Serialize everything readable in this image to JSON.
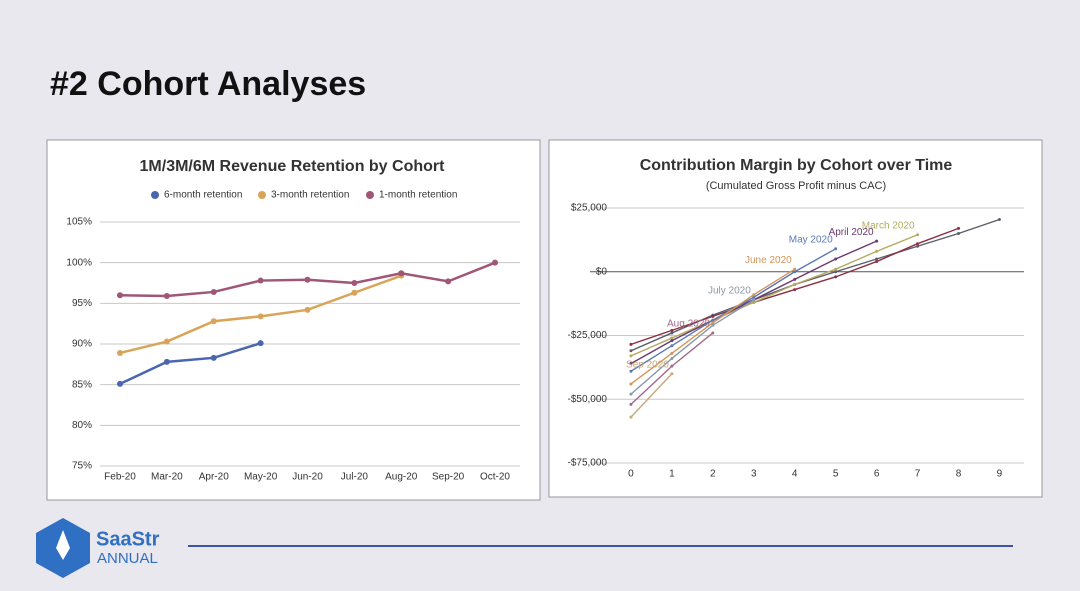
{
  "slide": {
    "title": "#2  Cohort Analyses",
    "logo": "SaaStr",
    "logo_sub": "ANNUAL"
  },
  "chart_data": [
    {
      "type": "line",
      "title": "1M/3M/6M Revenue Retention by Cohort",
      "categories": [
        "Feb-20",
        "Mar-20",
        "Apr-20",
        "May-20",
        "Jun-20",
        "Jul-20",
        "Aug-20",
        "Sep-20",
        "Oct-20"
      ],
      "ylim": [
        75,
        105
      ],
      "yticks": [
        {
          "value": 75,
          "label": "75%"
        },
        {
          "value": 80,
          "label": "80%"
        },
        {
          "value": 85,
          "label": "85%"
        },
        {
          "value": 90,
          "label": "90%"
        },
        {
          "value": 95,
          "label": "95%"
        },
        {
          "value": 100,
          "label": "100%"
        },
        {
          "value": 105,
          "label": "105%"
        }
      ],
      "grid": true,
      "legend": "top",
      "series": [
        {
          "name": "6-month retention",
          "color": "#4a66b0",
          "values": [
            85.1,
            87.8,
            88.3,
            90.1,
            null,
            null,
            null,
            null,
            null
          ]
        },
        {
          "name": "3-month retention",
          "color": "#d9a458",
          "values": [
            88.9,
            90.3,
            92.8,
            93.4,
            94.2,
            96.3,
            98.4,
            null,
            null
          ]
        },
        {
          "name": "1-month retention",
          "color": "#a05677",
          "values": [
            96.0,
            95.9,
            96.4,
            97.8,
            97.9,
            97.5,
            98.7,
            97.7,
            100.0
          ]
        }
      ]
    },
    {
      "type": "line",
      "title": "Contribution Margin by Cohort over Time",
      "subtitle": "(Cumulated Gross Profit minus CAC)",
      "x": [
        0,
        1,
        2,
        3,
        4,
        5,
        6,
        7,
        8,
        9
      ],
      "xlim": [
        -1,
        9.6
      ],
      "xticks": [
        0,
        1,
        2,
        3,
        4,
        5,
        6,
        7,
        8,
        9
      ],
      "ylim": [
        -75000,
        25000
      ],
      "yticks": [
        {
          "value": -75000,
          "label": "-$75,000"
        },
        {
          "value": -50000,
          "label": "-$50,000"
        },
        {
          "value": -25000,
          "label": "-$25,000"
        },
        {
          "value": 0,
          "label": "$0"
        },
        {
          "value": 25000,
          "label": "$25,000"
        }
      ],
      "grid": true,
      "series": [
        {
          "color": "#5a5c6a",
          "values": [
            -31000,
            -24000,
            -17000,
            -11000,
            -5000,
            0,
            5000,
            10000,
            15000,
            20500
          ]
        },
        {
          "color": "#8a3042",
          "values": [
            -28500,
            -23000,
            -17500,
            -12000,
            -7000,
            -2000,
            4000,
            11000,
            17000,
            null
          ]
        },
        {
          "name": "March 2020",
          "color": "#b3ab62",
          "values": [
            -33000,
            -26000,
            -19000,
            -12000,
            -5000,
            1000,
            8000,
            14500,
            null,
            null
          ]
        },
        {
          "name": "April 2020",
          "color": "#6a3a70",
          "values": [
            -36000,
            -27000,
            -19000,
            -11000,
            -3000,
            5000,
            12000,
            null,
            null,
            null
          ]
        },
        {
          "name": "May 2020",
          "color": "#5a78b8",
          "values": [
            -39000,
            -29000,
            -19000,
            -10000,
            0,
            9000,
            null,
            null,
            null,
            null
          ]
        },
        {
          "name": "June 2020",
          "color": "#d4955a",
          "values": [
            -44000,
            -32000,
            -20000,
            -9000,
            1000,
            null,
            null,
            null,
            null,
            null
          ]
        },
        {
          "name": "July 2020",
          "color": "#8a9aaa",
          "values": [
            -48000,
            -34000,
            -21000,
            -11000,
            null,
            null,
            null,
            null,
            null,
            null
          ]
        },
        {
          "name": "Aug 2020",
          "color": "#a06a8a",
          "values": [
            -52000,
            -37000,
            -24000,
            null,
            null,
            null,
            null,
            null,
            null,
            null
          ]
        },
        {
          "name": "Sep 2020",
          "color": "#c8a878",
          "values": [
            -57000,
            -40000,
            null,
            null,
            null,
            null,
            null,
            null,
            null,
            null
          ]
        }
      ]
    }
  ]
}
